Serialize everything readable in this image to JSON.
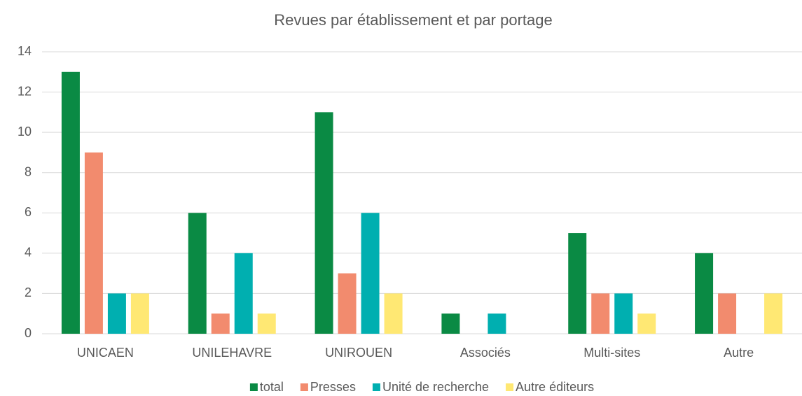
{
  "chart_data": {
    "type": "bar",
    "title": "Revues par établissement et par portage",
    "categories": [
      "UNICAEN",
      "UNILEHAVRE",
      "UNIROUEN",
      "Associés",
      "Multi-sites",
      "Autre"
    ],
    "series": [
      {
        "name": "total",
        "color": "#0a8a44",
        "values": [
          13,
          6,
          11,
          1,
          5,
          4
        ]
      },
      {
        "name": "Presses",
        "color": "#f28b6e",
        "values": [
          9,
          1,
          3,
          0,
          2,
          2
        ]
      },
      {
        "name": "Unité de recherche",
        "color": "#00afb0",
        "values": [
          2,
          4,
          6,
          1,
          2,
          0
        ]
      },
      {
        "name": "Autre éditeurs",
        "color": "#ffe873",
        "values": [
          2,
          1,
          2,
          0,
          1,
          2
        ]
      }
    ],
    "ylim": [
      0,
      14
    ],
    "yticks": [
      0,
      2,
      4,
      6,
      8,
      10,
      12,
      14
    ],
    "grid": true,
    "legend": "bottom"
  }
}
